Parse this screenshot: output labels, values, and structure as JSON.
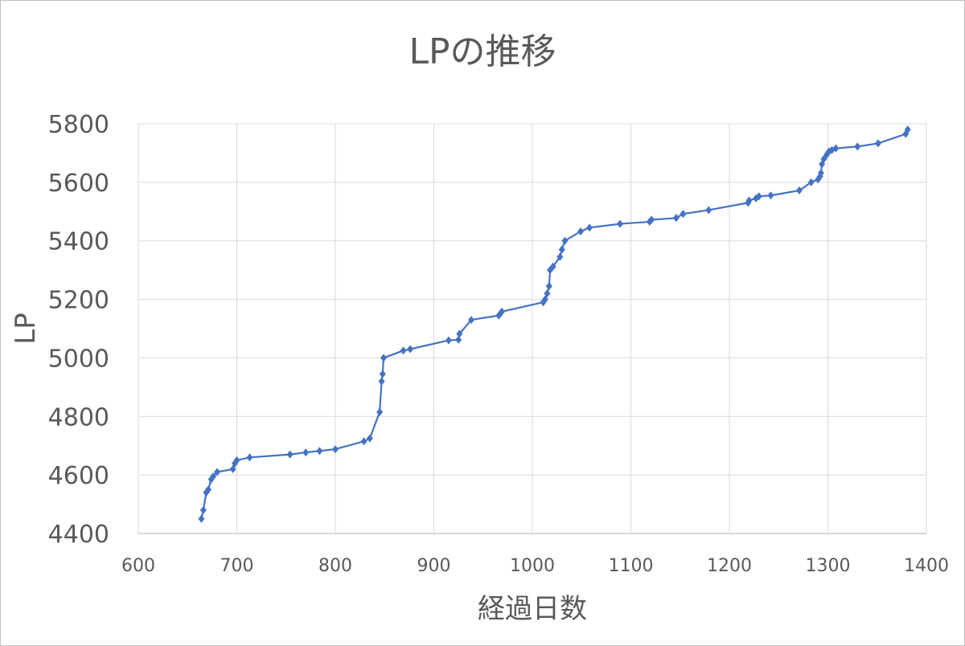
{
  "chart_data": {
    "type": "line",
    "title": "LPの推移",
    "xlabel": "経過日数",
    "ylabel": "LP",
    "xlim": [
      600,
      1400
    ],
    "ylim": [
      4400,
      5800
    ],
    "xticks": [
      600,
      700,
      800,
      900,
      1000,
      1100,
      1200,
      1300,
      1400
    ],
    "yticks": [
      4400,
      4600,
      4800,
      5000,
      5200,
      5400,
      5600,
      5800
    ],
    "grid": true,
    "legend": "none",
    "colors": {
      "series": "#4472C4",
      "grid": "#d9d9d9",
      "text": "#595959"
    },
    "series": [
      {
        "marker": "diamond",
        "x": [
          664,
          666,
          669,
          671,
          674,
          676,
          680,
          696,
          698,
          700,
          713,
          754,
          770,
          784,
          800,
          829,
          835,
          845,
          847,
          848,
          849,
          869,
          876,
          915,
          925,
          926,
          938,
          966,
          969,
          1011,
          1013,
          1015,
          1017,
          1018,
          1021,
          1028,
          1030,
          1033,
          1049,
          1058,
          1089,
          1119,
          1121,
          1146,
          1153,
          1179,
          1219,
          1220,
          1227,
          1230,
          1242,
          1271,
          1283,
          1290,
          1292,
          1293,
          1294,
          1296,
          1299,
          1301,
          1304,
          1308,
          1330,
          1351,
          1379,
          1381
        ],
        "y": [
          4450,
          4480,
          4540,
          4550,
          4585,
          4595,
          4610,
          4620,
          4640,
          4650,
          4660,
          4670,
          4677,
          4682,
          4688,
          4715,
          4725,
          4815,
          4920,
          4945,
          5000,
          5025,
          5030,
          5060,
          5062,
          5082,
          5130,
          5145,
          5158,
          5190,
          5200,
          5220,
          5245,
          5300,
          5312,
          5345,
          5370,
          5400,
          5432,
          5445,
          5458,
          5465,
          5472,
          5478,
          5492,
          5505,
          5530,
          5538,
          5545,
          5552,
          5555,
          5572,
          5600,
          5610,
          5620,
          5632,
          5662,
          5680,
          5695,
          5705,
          5710,
          5716,
          5722,
          5733,
          5765,
          5780
        ]
      }
    ]
  }
}
